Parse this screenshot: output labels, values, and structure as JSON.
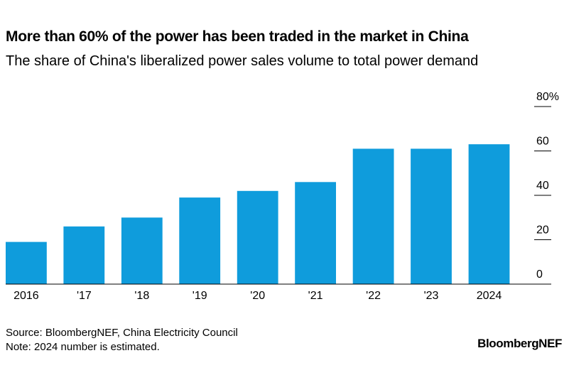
{
  "chart_data": {
    "type": "bar",
    "title": "More than 60% of the power has been traded in the market in China",
    "subtitle": "The share of China's liberalized power sales volume to total power demand",
    "categories": [
      "2016",
      "'17",
      "'18",
      "'19",
      "'20",
      "'21",
      "'22",
      "'23",
      "2024"
    ],
    "values": [
      19,
      26,
      30,
      39,
      42,
      46,
      61,
      61,
      63
    ],
    "ylim": [
      0,
      80
    ],
    "yticks": [
      0,
      20,
      40,
      60,
      80
    ],
    "ytick_labels": [
      "0",
      "20",
      "40",
      "60",
      "80%"
    ],
    "y_axis_side": "right",
    "bar_color": "#0f9cdc",
    "xlabel": "",
    "ylabel": ""
  },
  "footer": {
    "source": "Source: BloombergNEF, China Electricity Council",
    "note": "Note: 2024 number is estimated."
  },
  "brand": "BloombergNEF"
}
